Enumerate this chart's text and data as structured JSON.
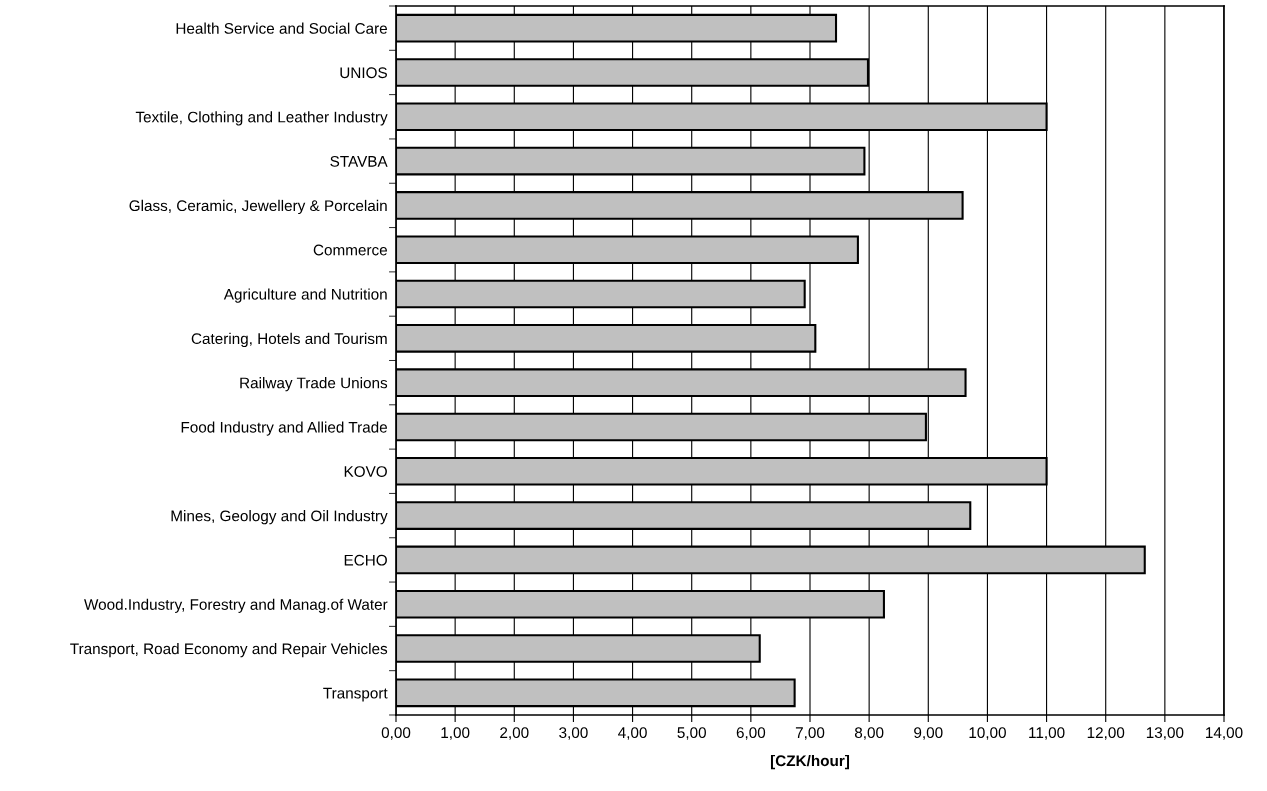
{
  "chart_data": {
    "type": "bar",
    "orientation": "horizontal",
    "xlabel": "[CZK/hour]",
    "categories": [
      "Health Service and Social Care",
      "UNIOS",
      "Textile, Clothing and Leather Industry",
      "STAVBA",
      "Glass, Ceramic, Jewellery & Porcelain",
      "Commerce",
      "Agriculture and Nutrition",
      "Catering, Hotels and Tourism",
      "Railway Trade Unions",
      "Food Industry and Allied Trade",
      "KOVO",
      "Mines, Geology and Oil Industry",
      "ECHO",
      "Wood.Industry, Forestry and Manag.of Water",
      "Transport, Road Economy and Repair Vehicles",
      "Transport"
    ],
    "values": [
      7.44,
      7.98,
      11.0,
      7.92,
      9.58,
      7.81,
      6.91,
      7.09,
      9.63,
      8.96,
      11.0,
      9.71,
      12.66,
      8.25,
      6.15,
      6.74
    ],
    "color": "#c0c0c0",
    "xlim": [
      0,
      14
    ],
    "xticks": [
      {
        "value": 0,
        "label": "0,00"
      },
      {
        "value": 1,
        "label": "1,00"
      },
      {
        "value": 2,
        "label": "2,00"
      },
      {
        "value": 3,
        "label": "3,00"
      },
      {
        "value": 4,
        "label": "4,00"
      },
      {
        "value": 5,
        "label": "5,00"
      },
      {
        "value": 6,
        "label": "6,00"
      },
      {
        "value": 7,
        "label": "7,00"
      },
      {
        "value": 8,
        "label": "8,00"
      },
      {
        "value": 9,
        "label": "9,00"
      },
      {
        "value": 10,
        "label": "10,00"
      },
      {
        "value": 11,
        "label": "11,00"
      },
      {
        "value": 12,
        "label": "12,00"
      },
      {
        "value": 13,
        "label": "13,00"
      },
      {
        "value": 14,
        "label": "14,00"
      }
    ],
    "grid": "x"
  }
}
